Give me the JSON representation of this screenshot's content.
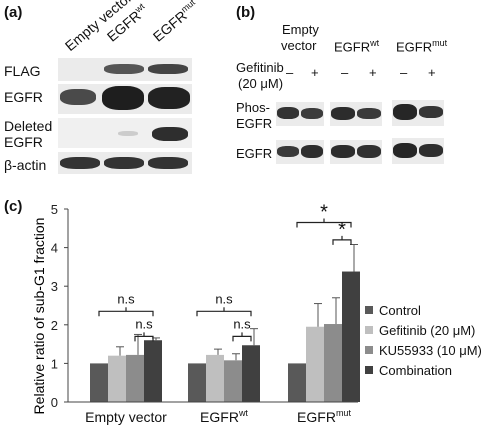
{
  "panel_a": {
    "letter": "(a)",
    "columns": [
      "Empty vector",
      "EGFR",
      "EGFR"
    ],
    "column_superscripts": [
      "",
      "wt",
      "mut"
    ],
    "rows": [
      "FLAG",
      "EGFR",
      "Deleted",
      "EGFR",
      "β-actin"
    ]
  },
  "panel_b": {
    "letter": "(b)",
    "col_empty_line1": "Empty",
    "col_empty_line2": "vector",
    "col_wt": "EGFR",
    "col_wt_sup": "wt",
    "col_mut": "EGFR",
    "col_mut_sup": "mut",
    "treatment_line1": "Gefitinib",
    "treatment_line2": "(20 μM)",
    "minus": "–",
    "plus": "+",
    "row_phos_line1": "Phos-",
    "row_phos_line2": "EGFR",
    "row_egfr": "EGFR"
  },
  "panel_c": {
    "letter": "(c)",
    "chart_data": {
      "type": "bar",
      "ylabel": "Relative ratio of sub-G1 fraction",
      "ylim": [
        0,
        5
      ],
      "yticks": [
        "0",
        "1",
        "2",
        "3",
        "4",
        "5"
      ],
      "categories": [
        "Empty vector",
        "EGFR",
        "EGFR"
      ],
      "category_superscripts": [
        "",
        "wt",
        "mut"
      ],
      "series": [
        {
          "name": "Control",
          "values": [
            1.0,
            1.0,
            1.0
          ],
          "errors": [
            0,
            0,
            0
          ],
          "color": "#595959"
        },
        {
          "name": "Gefitinib  (20 μM)",
          "values": [
            1.2,
            1.22,
            1.95
          ],
          "errors": [
            0.23,
            0.15,
            0.6
          ],
          "color": "#bfbfbf"
        },
        {
          "name": "KU55933  (10 μM)",
          "values": [
            1.22,
            1.08,
            2.02
          ],
          "errors": [
            0.53,
            0.17,
            0.68
          ],
          "color": "#8c8c8c"
        },
        {
          "name": "Combination",
          "values": [
            1.6,
            1.47,
            3.38
          ],
          "errors": [
            0.06,
            0.43,
            0.7
          ],
          "color": "#404040"
        }
      ],
      "annotations": [
        "n.s",
        "n.s",
        "n.s",
        "n.s",
        "*",
        "*"
      ],
      "legend": "right"
    }
  }
}
